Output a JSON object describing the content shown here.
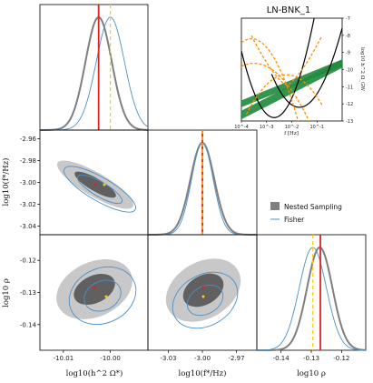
{
  "figure": {
    "legend": {
      "placement": "right-middle",
      "items": [
        "Nested Sampling",
        "Fisher"
      ]
    },
    "colors": {
      "nested": "#7f7f7f",
      "nested_inner": "#606060",
      "nested_outer": "#c8c8c8",
      "fisher": "#4a90c8",
      "truth": "#e02020",
      "reference": "#ffcc00",
      "band_green": "#1f8a3c",
      "band_orange": "#ff8c00",
      "noise_black": "#000000"
    },
    "params": [
      {
        "key": "h2omega",
        "label": "log10(h^2 Ω*)",
        "ticks": [
          "-10.01",
          "-10.00"
        ]
      },
      {
        "key": "fstar",
        "label": "log10(f*/Hz)",
        "ticks": [
          "-3.03",
          "-3.00",
          "-2.97"
        ]
      },
      {
        "key": "rho",
        "label": "log10 ρ",
        "ticks": [
          "-0.14",
          "-0.13",
          "-0.12"
        ]
      }
    ]
  },
  "chart_data": [
    {
      "type": "corner",
      "panel": "h2omega-marginal",
      "x_param": "log10(h^2 Ω*)",
      "xlim": [
        -10.015,
        -9.992
      ],
      "truth": -10.0025,
      "reference": -10.0,
      "series": [
        {
          "name": "Nested Sampling",
          "mean": -10.0025,
          "sigma": 0.0028
        },
        {
          "name": "Fisher",
          "mean": -10.0,
          "sigma": 0.003
        }
      ]
    },
    {
      "type": "scatter",
      "panel": "fstar-vs-h2omega",
      "xlabel": "",
      "ylabel": "log10(f*/Hz)",
      "xlim": [
        -10.015,
        -9.992
      ],
      "ylim": [
        -3.048,
        -2.952
      ],
      "yticks": [
        "-2.96",
        "-2.98",
        "-3.00",
        "-3.02",
        "-3.04"
      ],
      "truth_point": [
        -10.0025,
        -3.0
      ],
      "reference_point": [
        -10.0,
        -3.0
      ]
    },
    {
      "type": "scatter",
      "panel": "rho-vs-h2omega",
      "xlabel": "log10(h^2 Ω*)",
      "ylabel": "log10 ρ",
      "xlim": [
        -10.015,
        -9.992
      ],
      "ylim": [
        -0.148,
        -0.112
      ],
      "yticks": [
        "-0.12",
        "-0.13",
        "-0.14"
      ],
      "xticks": [
        "-10.01",
        "-10.00"
      ],
      "truth_point": [
        -10.0025,
        -0.127
      ],
      "reference_point": [
        -10.0,
        -0.129
      ]
    },
    {
      "type": "line",
      "panel": "fstar-marginal",
      "xlim": [
        -3.048,
        -2.952
      ],
      "truth": -3.0,
      "reference": -3.0,
      "series": [
        {
          "name": "Nested Sampling",
          "mean": -3.0,
          "sigma": 0.0105
        },
        {
          "name": "Fisher",
          "mean": -3.0,
          "sigma": 0.0095
        }
      ]
    },
    {
      "type": "scatter",
      "panel": "rho-vs-fstar",
      "xlabel": "log10(f*/Hz)",
      "ylabel": "",
      "xlim": [
        -3.048,
        -2.952
      ],
      "ylim": [
        -0.148,
        -0.112
      ],
      "xticks": [
        "-3.03",
        "-3.00",
        "-2.97"
      ],
      "truth_point": [
        -3.0,
        -0.127
      ],
      "reference_point": [
        -3.0,
        -0.129
      ]
    },
    {
      "type": "line",
      "panel": "rho-marginal",
      "xlabel": "log10 ρ",
      "xlim": [
        -0.148,
        -0.112
      ],
      "xticks": [
        "-0.14",
        "-0.13",
        "-0.12"
      ],
      "truth": -0.127,
      "reference": -0.1295,
      "series": [
        {
          "name": "Nested Sampling",
          "mean": -0.1272,
          "sigma": 0.0042
        },
        {
          "name": "Fisher",
          "mean": -0.1295,
          "sigma": 0.0045
        }
      ]
    },
    {
      "type": "line",
      "panel": "inset-spectrum",
      "title": "LN-BNK_1",
      "xlabel": "f [Hz]",
      "ylabel": "log10 h^2 Ω_GW",
      "xscale": "log",
      "xlim": [
        0.0001,
        1.0
      ],
      "ylim": [
        -13,
        -7
      ],
      "xticks": [
        "10^-4",
        "10^-3",
        "10^-2",
        "10^-1"
      ],
      "yticks": [
        "-7",
        "-8",
        "-9",
        "-10",
        "-11",
        "-12",
        "-13"
      ]
    }
  ]
}
